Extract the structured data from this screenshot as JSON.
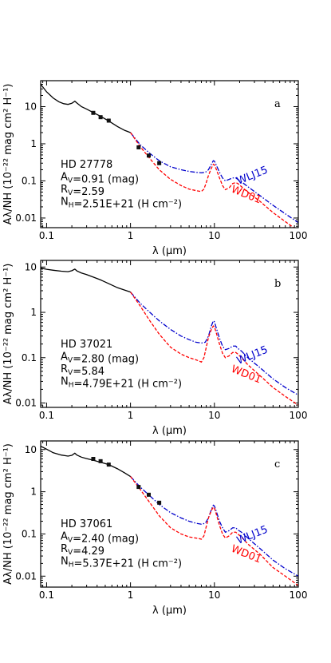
{
  "colors": {
    "observed": "#000000",
    "wd01": "#ff0000",
    "wlj15": "#0000cc"
  },
  "chart_data": [
    {
      "type": "line",
      "panel_label": "a",
      "xlabel": "λ (μm)",
      "ylabel": "Aλ/NH (10⁻²² mag cm² H⁻¹)",
      "x_scale": "log",
      "y_scale": "log",
      "xlim": [
        0.085,
        100
      ],
      "ylim": [
        0.0055,
        50
      ],
      "x_ticks": [
        {
          "v": 0.1,
          "label": "0.1"
        },
        {
          "v": 1,
          "label": "1"
        },
        {
          "v": 10,
          "label": "10"
        },
        {
          "v": 100,
          "label": "100"
        }
      ],
      "y_ticks": [
        {
          "v": 0.01,
          "label": "0.01"
        },
        {
          "v": 0.1,
          "label": "0.1"
        },
        {
          "v": 1,
          "label": "1"
        },
        {
          "v": 10,
          "label": "10"
        }
      ],
      "info": {
        "star": "HD 27778",
        "av": "A_V=0.91 (mag)",
        "rv": "R_V=2.59",
        "nh": "N_H=2.51E+21 (H cm⁻²)"
      },
      "series": [
        {
          "name": "WLJ15",
          "style": "dashdot",
          "x": [
            1.0,
            1.3,
            1.7,
            2.2,
            3,
            4,
            5,
            6,
            7,
            7.8,
            8.5,
            9.2,
            9.7,
            10,
            10.5,
            11.5,
            12.5,
            13.5,
            15,
            16.5,
            18,
            19,
            21,
            25,
            35,
            50,
            70,
            100
          ],
          "y": [
            2.0,
            0.95,
            0.55,
            0.35,
            0.24,
            0.2,
            0.18,
            0.17,
            0.165,
            0.17,
            0.2,
            0.28,
            0.35,
            0.34,
            0.27,
            0.17,
            0.12,
            0.1,
            0.11,
            0.12,
            0.12,
            0.11,
            0.095,
            0.07,
            0.04,
            0.022,
            0.013,
            0.0075
          ]
        },
        {
          "name": "WD01",
          "style": "dashed",
          "x": [
            1.0,
            1.3,
            1.7,
            2.2,
            3,
            4,
            5,
            6,
            6.5,
            7,
            7.5,
            8,
            8.5,
            9.2,
            9.7,
            10,
            10.5,
            11.5,
            12.5,
            13.5,
            15,
            16.5,
            18,
            19,
            21,
            25,
            35,
            50,
            70,
            100
          ],
          "y": [
            2.0,
            0.85,
            0.4,
            0.2,
            0.11,
            0.075,
            0.06,
            0.055,
            0.053,
            0.052,
            0.06,
            0.09,
            0.14,
            0.22,
            0.28,
            0.27,
            0.21,
            0.12,
            0.075,
            0.058,
            0.065,
            0.085,
            0.09,
            0.085,
            0.07,
            0.05,
            0.028,
            0.014,
            0.008,
            0.0045
          ]
        },
        {
          "name": "observed",
          "style": "solid",
          "x": [
            0.085,
            0.1,
            0.12,
            0.14,
            0.16,
            0.18,
            0.2,
            0.217,
            0.23,
            0.26,
            0.3,
            0.36,
            0.44,
            0.55,
            0.7,
            0.85,
            1.0
          ],
          "y": [
            40,
            25,
            17,
            13.5,
            12,
            11.5,
            12.3,
            14,
            12.5,
            10,
            8.6,
            6.9,
            5.5,
            4.1,
            2.9,
            2.3,
            2.0
          ]
        },
        {
          "name": "photometry",
          "style": "markers",
          "x": [
            0.36,
            0.44,
            0.55,
            1.25,
            1.65,
            2.2
          ],
          "y": [
            6.8,
            5.2,
            4.2,
            0.8,
            0.48,
            0.3
          ]
        }
      ],
      "labels": {
        "wlj15": "WLJ15",
        "wd01": "WD01"
      }
    },
    {
      "type": "line",
      "panel_label": "b",
      "xlabel": "λ (μm)",
      "ylabel": "Aλ/NH (10⁻²² mag cm² H⁻¹)",
      "x_scale": "log",
      "y_scale": "log",
      "xlim": [
        0.085,
        100
      ],
      "ylim": [
        0.008,
        14
      ],
      "x_ticks": [
        {
          "v": 0.1,
          "label": "0.1"
        },
        {
          "v": 1,
          "label": "1"
        },
        {
          "v": 10,
          "label": "10"
        },
        {
          "v": 100,
          "label": "100"
        }
      ],
      "y_ticks": [
        {
          "v": 0.01,
          "label": "0.01"
        },
        {
          "v": 0.1,
          "label": "0.1"
        },
        {
          "v": 1,
          "label": "1"
        },
        {
          "v": 10,
          "label": "10"
        }
      ],
      "info": {
        "star": "HD 37021",
        "av": "A_V=2.80 (mag)",
        "rv": "R_V=5.84",
        "nh": "N_H=4.79E+21 (H cm⁻²)"
      },
      "series": [
        {
          "name": "WLJ15",
          "style": "dashdot",
          "x": [
            1.0,
            1.3,
            1.7,
            2.2,
            3,
            4,
            5,
            6,
            7,
            7.8,
            8.5,
            9.2,
            9.7,
            10,
            10.5,
            11.5,
            12.5,
            13.5,
            15,
            16.5,
            18,
            19,
            21,
            25,
            35,
            50,
            70,
            100
          ],
          "y": [
            2.8,
            1.6,
            1.0,
            0.65,
            0.42,
            0.3,
            0.25,
            0.22,
            0.21,
            0.22,
            0.3,
            0.5,
            0.65,
            0.62,
            0.46,
            0.27,
            0.18,
            0.15,
            0.16,
            0.18,
            0.18,
            0.16,
            0.14,
            0.1,
            0.06,
            0.034,
            0.022,
            0.015
          ]
        },
        {
          "name": "WD01",
          "style": "dashed",
          "x": [
            1.0,
            1.3,
            1.7,
            2.2,
            3,
            4,
            5,
            6,
            6.5,
            7,
            7.5,
            8,
            8.5,
            9.2,
            9.7,
            10,
            10.5,
            11.5,
            12.5,
            13.5,
            15,
            16.5,
            18,
            19,
            21,
            25,
            35,
            50,
            70,
            100
          ],
          "y": [
            2.8,
            1.4,
            0.65,
            0.33,
            0.17,
            0.12,
            0.1,
            0.09,
            0.085,
            0.08,
            0.1,
            0.17,
            0.28,
            0.42,
            0.5,
            0.48,
            0.36,
            0.2,
            0.125,
            0.1,
            0.11,
            0.13,
            0.13,
            0.12,
            0.1,
            0.07,
            0.04,
            0.022,
            0.014,
            0.009
          ]
        },
        {
          "name": "observed",
          "style": "solid",
          "x": [
            0.085,
            0.1,
            0.12,
            0.15,
            0.18,
            0.2,
            0.217,
            0.23,
            0.26,
            0.3,
            0.36,
            0.44,
            0.55,
            0.7,
            0.85,
            1.0
          ],
          "y": [
            9.5,
            8.9,
            8.5,
            8.1,
            7.9,
            8.3,
            9.0,
            8.2,
            7.4,
            6.8,
            6.0,
            5.2,
            4.3,
            3.5,
            3.1,
            2.8
          ]
        }
      ],
      "labels": {
        "wlj15": "WLJ15",
        "wd01": "WD01"
      }
    },
    {
      "type": "line",
      "panel_label": "c",
      "xlabel": "λ (μm)",
      "ylabel": "Aλ/NH (10⁻²² mag cm² H⁻¹)",
      "x_scale": "log",
      "y_scale": "log",
      "xlim": [
        0.085,
        100
      ],
      "ylim": [
        0.0055,
        16
      ],
      "x_ticks": [
        {
          "v": 0.1,
          "label": "0.1"
        },
        {
          "v": 1,
          "label": "1"
        },
        {
          "v": 10,
          "label": "10"
        },
        {
          "v": 100,
          "label": "100"
        }
      ],
      "y_ticks": [
        {
          "v": 0.01,
          "label": "0.01"
        },
        {
          "v": 0.1,
          "label": "0.1"
        },
        {
          "v": 1,
          "label": "1"
        },
        {
          "v": 10,
          "label": "10"
        }
      ],
      "info": {
        "star": "HD 37061",
        "av": "A_V=2.40 (mag)",
        "rv": "R_V=4.29",
        "nh": "N_H=5.37E+21 (H cm⁻²)"
      },
      "series": [
        {
          "name": "WLJ15",
          "style": "dashdot",
          "x": [
            1.0,
            1.3,
            1.7,
            2.2,
            3,
            4,
            5,
            6,
            7,
            7.8,
            8.5,
            9.2,
            9.7,
            10,
            10.5,
            11.5,
            12.5,
            13.5,
            15,
            16.5,
            18,
            19,
            21,
            25,
            35,
            50,
            70,
            100
          ],
          "y": [
            2.3,
            1.3,
            0.8,
            0.5,
            0.32,
            0.24,
            0.2,
            0.18,
            0.17,
            0.18,
            0.24,
            0.38,
            0.48,
            0.46,
            0.35,
            0.2,
            0.14,
            0.11,
            0.12,
            0.14,
            0.14,
            0.125,
            0.11,
            0.08,
            0.045,
            0.024,
            0.015,
            0.01
          ]
        },
        {
          "name": "WD01",
          "style": "dashed",
          "x": [
            1.0,
            1.3,
            1.7,
            2.2,
            3,
            4,
            5,
            6,
            6.5,
            7,
            7.5,
            8,
            8.5,
            9.2,
            9.7,
            10,
            10.5,
            11.5,
            12.5,
            13.5,
            15,
            16.5,
            18,
            19,
            21,
            25,
            35,
            50,
            70,
            100
          ],
          "y": [
            2.3,
            1.15,
            0.55,
            0.27,
            0.14,
            0.1,
            0.085,
            0.08,
            0.078,
            0.075,
            0.09,
            0.15,
            0.24,
            0.36,
            0.43,
            0.41,
            0.3,
            0.16,
            0.1,
            0.08,
            0.09,
            0.11,
            0.11,
            0.1,
            0.085,
            0.058,
            0.033,
            0.016,
            0.01,
            0.006
          ]
        },
        {
          "name": "observed",
          "style": "solid",
          "x": [
            0.085,
            0.1,
            0.12,
            0.15,
            0.18,
            0.2,
            0.217,
            0.23,
            0.26,
            0.3,
            0.36,
            0.44,
            0.55,
            0.7,
            0.85,
            1.0
          ],
          "y": [
            12,
            10.2,
            8.4,
            7.4,
            7.0,
            7.3,
            8.2,
            7.4,
            6.6,
            6.1,
            5.6,
            5.0,
            4.4,
            3.5,
            2.8,
            2.3
          ]
        },
        {
          "name": "photometry",
          "style": "markers",
          "x": [
            0.36,
            0.44,
            0.55,
            1.25,
            1.65,
            2.2
          ],
          "y": [
            6.0,
            5.3,
            4.4,
            1.3,
            0.85,
            0.55
          ]
        }
      ],
      "labels": {
        "wlj15": "WLJ15",
        "wd01": "WD01"
      }
    }
  ]
}
